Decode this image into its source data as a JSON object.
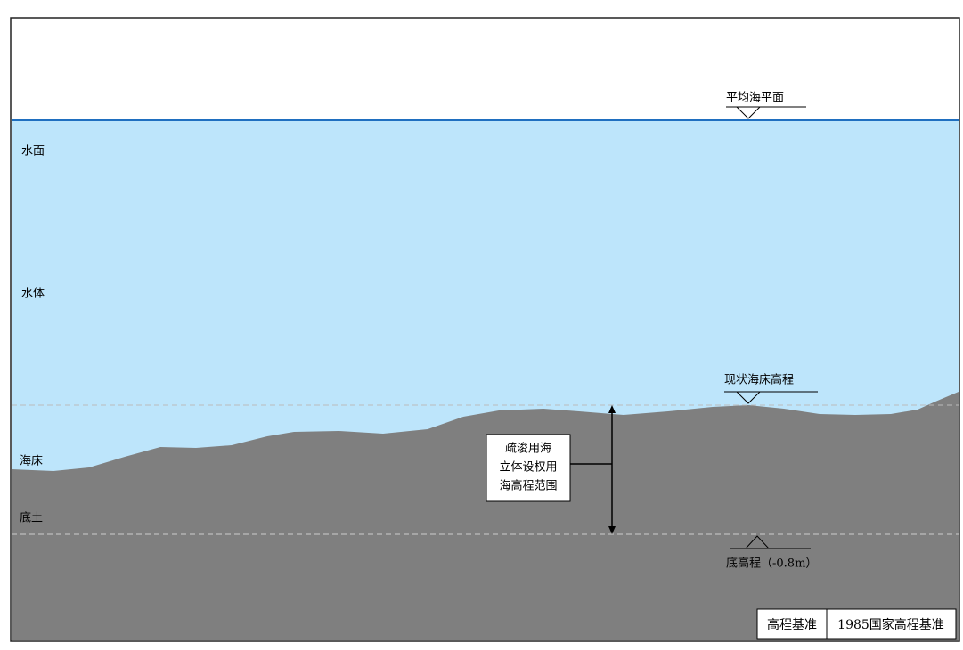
{
  "layers": [
    {
      "label": "水面"
    },
    {
      "label": "水体"
    },
    {
      "label": "海床"
    },
    {
      "label": "底土"
    }
  ],
  "markers": {
    "mean_sea_level": "平均海平面",
    "current_seabed": "现状海床高程",
    "bottom_elevation": "底高程（-0.8m）"
  },
  "range_box": {
    "lines": [
      "疏浚用海",
      "立体设权用",
      "海高程范围"
    ]
  },
  "datum_table": {
    "label": "高程基准",
    "value": "1985国家高程基准"
  }
}
